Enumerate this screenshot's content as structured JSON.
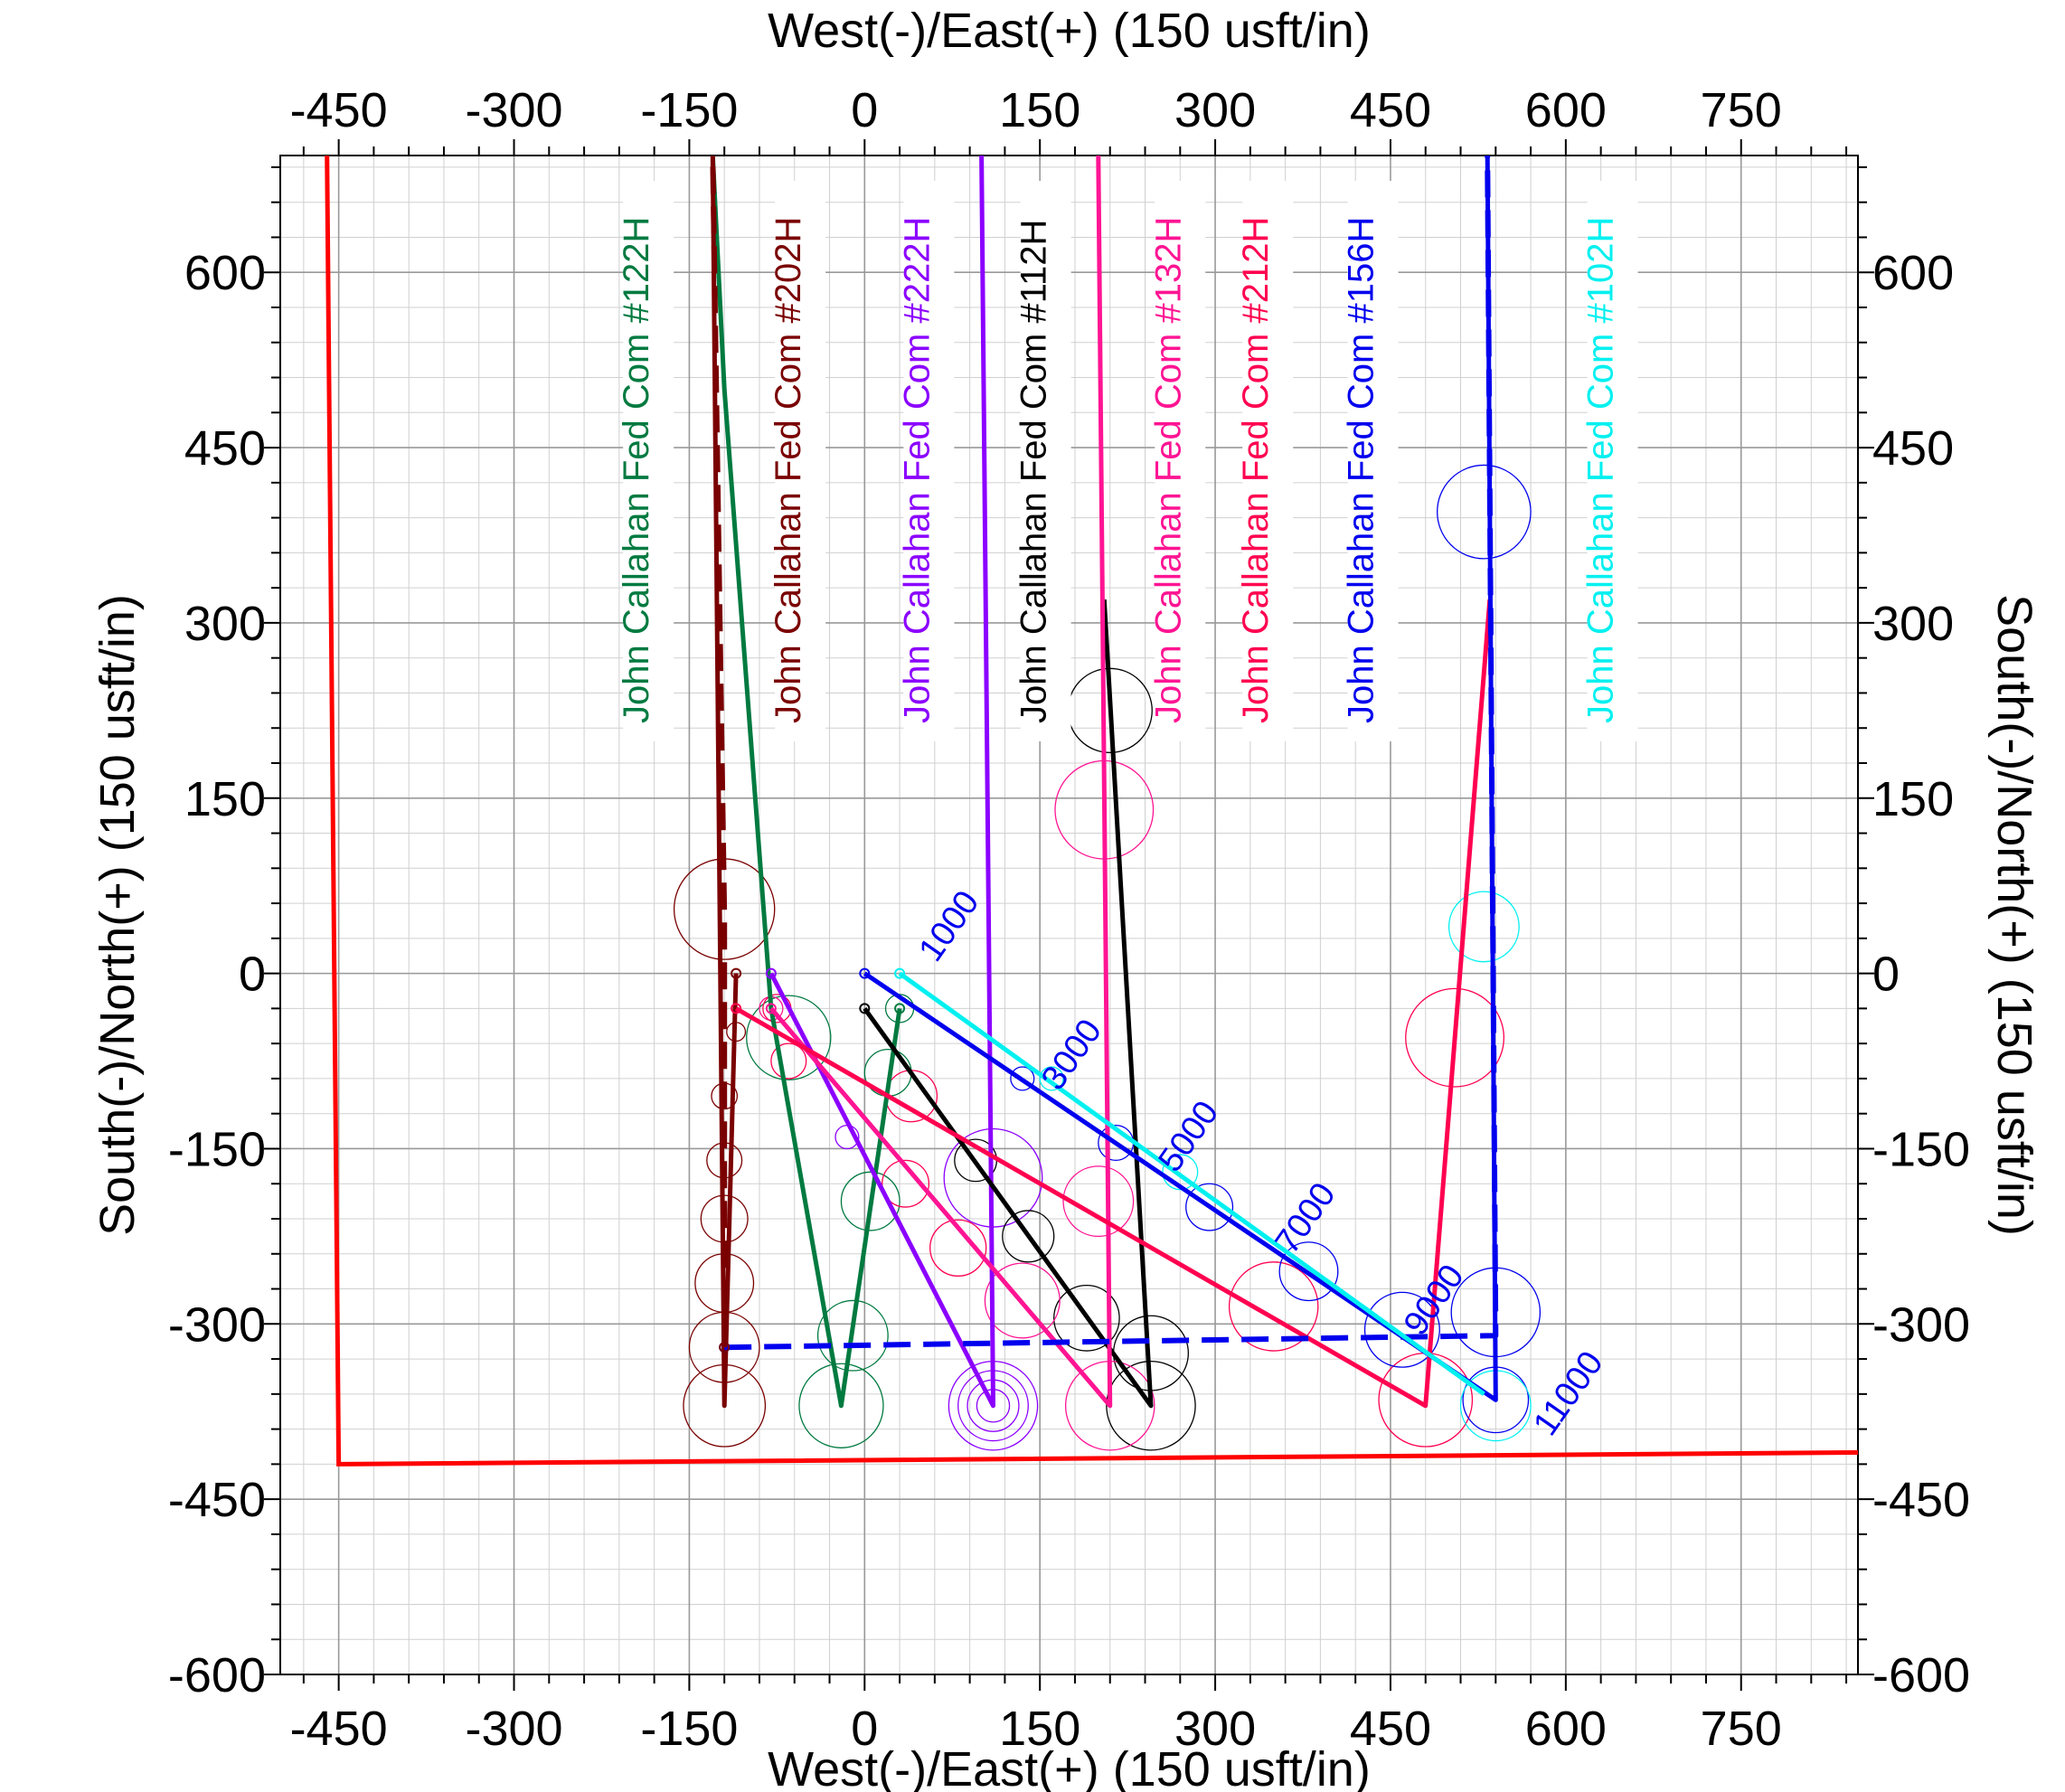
{
  "chart_data": {
    "type": "line",
    "title": "",
    "xlabel": "West(-)/East(+) (150 usft/in)",
    "ylabel": "South(-)/North(+) (150 usft/in)",
    "xlim": [
      -500,
      850
    ],
    "ylim": [
      -600,
      700
    ],
    "x_ticks": [
      -450,
      -300,
      -150,
      0,
      150,
      300,
      450,
      600,
      750
    ],
    "y_ticks": [
      600,
      450,
      300,
      150,
      0,
      -150,
      -300,
      -450,
      -600
    ],
    "grid": true,
    "colors": {
      "green": "#007a40",
      "maroon": "#7a0000",
      "purple": "#8b00ff",
      "black": "#000000",
      "pink": "#ff1493",
      "crimson": "#ff0050",
      "blue": "#0000ee",
      "cyan": "#00f0f0",
      "red": "#ff0000"
    },
    "lease_boundary": {
      "color": "#ff0000",
      "points": [
        [
          -460,
          700
        ],
        [
          -450,
          -420
        ],
        [
          850,
          -410
        ]
      ]
    },
    "well_labels": [
      {
        "text": "John Callahan Fed Com #122H",
        "color": "#007a40",
        "x": -185
      },
      {
        "text": "John Callahan Fed Com #202H",
        "color": "#7a0000",
        "x": -55
      },
      {
        "text": "John Callahan Fed Com #222H",
        "color": "#8b00ff",
        "x": 55
      },
      {
        "text": "John Callahan Fed Com #112H",
        "color": "#000000",
        "x": 155
      },
      {
        "text": "John Callahan Fed Com #132H",
        "color": "#ff1493",
        "x": 270
      },
      {
        "text": "John Callahan Fed Com #212H",
        "color": "#ff0050",
        "x": 345
      },
      {
        "text": "John Callahan Fed Com #156H",
        "color": "#0000ee",
        "x": 435
      },
      {
        "text": "John Callahan Fed Com #102H",
        "color": "#00f0f0",
        "x": 640
      }
    ],
    "series": [
      {
        "color": "#007a40",
        "dashed": false,
        "points": [
          [
            30,
            -30
          ],
          [
            -20,
            -370
          ],
          [
            -80,
            -30
          ],
          [
            -120,
            500
          ],
          [
            -130,
            700
          ]
        ]
      },
      {
        "color": "#7a0000",
        "dashed": false,
        "points": [
          [
            -110,
            0
          ],
          [
            -120,
            -370
          ],
          [
            -130,
            700
          ]
        ]
      },
      {
        "color": "#8b00ff",
        "dashed": false,
        "points": [
          [
            -80,
            0
          ],
          [
            110,
            -370
          ],
          [
            100,
            700
          ]
        ]
      },
      {
        "color": "#000000",
        "dashed": false,
        "points": [
          [
            0,
            -30
          ],
          [
            245,
            -370
          ],
          [
            205,
            320
          ]
        ]
      },
      {
        "color": "#ff1493",
        "dashed": false,
        "points": [
          [
            -80,
            -30
          ],
          [
            210,
            -370
          ],
          [
            200,
            700
          ]
        ]
      },
      {
        "color": "#ff0050",
        "dashed": false,
        "points": [
          [
            -110,
            -30
          ],
          [
            480,
            -370
          ],
          [
            535,
            320
          ]
        ]
      },
      {
        "color": "#0000ee",
        "dashed": false,
        "points": [
          [
            0,
            0
          ],
          [
            540,
            -365
          ],
          [
            533,
            700
          ]
        ]
      },
      {
        "color": "#0000ee",
        "dashed": true,
        "points": [
          [
            -120,
            -320
          ],
          [
            540,
            -310
          ],
          [
            533,
            700
          ]
        ]
      },
      {
        "color": "#00f0f0",
        "dashed": false,
        "points": [
          [
            30,
            0
          ],
          [
            530,
            -360
          ]
        ]
      },
      {
        "color": "#7a0000",
        "dashed": true,
        "points": [
          [
            -120,
            -320
          ],
          [
            -120,
            50
          ],
          [
            -130,
            700
          ]
        ]
      }
    ],
    "md_labels": [
      {
        "text": "1000",
        "x": 80,
        "y": 35
      },
      {
        "text": "3000",
        "x": 185,
        "y": -75
      },
      {
        "text": "5000",
        "x": 285,
        "y": -145
      },
      {
        "text": "7000",
        "x": 385,
        "y": -215
      },
      {
        "text": "9000",
        "x": 495,
        "y": -285
      },
      {
        "text": "11000",
        "x": 610,
        "y": -365
      }
    ],
    "circles": [
      {
        "x": -120,
        "y": 55,
        "r": 43,
        "color": "#7a0000"
      },
      {
        "x": -120,
        "y": -370,
        "r": 35,
        "color": "#7a0000"
      },
      {
        "x": -120,
        "y": -320,
        "r": 30,
        "color": "#7a0000"
      },
      {
        "x": -120,
        "y": -265,
        "r": 25,
        "color": "#7a0000"
      },
      {
        "x": -120,
        "y": -210,
        "r": 20,
        "color": "#7a0000"
      },
      {
        "x": -120,
        "y": -160,
        "r": 15,
        "color": "#7a0000"
      },
      {
        "x": -120,
        "y": -105,
        "r": 11,
        "color": "#7a0000"
      },
      {
        "x": -110,
        "y": -50,
        "r": 8,
        "color": "#7a0000"
      },
      {
        "x": -65,
        "y": -55,
        "r": 36,
        "color": "#007a40"
      },
      {
        "x": 20,
        "y": -85,
        "r": 20,
        "color": "#007a40"
      },
      {
        "x": 5,
        "y": -195,
        "r": 25,
        "color": "#007a40"
      },
      {
        "x": -10,
        "y": -310,
        "r": 30,
        "color": "#007a40"
      },
      {
        "x": -20,
        "y": -370,
        "r": 36,
        "color": "#007a40"
      },
      {
        "x": 30,
        "y": -30,
        "r": 12,
        "color": "#007a40"
      },
      {
        "x": 110,
        "y": -175,
        "r": 42,
        "color": "#8b00ff"
      },
      {
        "x": 110,
        "y": -370,
        "r": 38,
        "color": "#8b00ff"
      },
      {
        "x": 110,
        "y": -370,
        "r": 30,
        "color": "#8b00ff"
      },
      {
        "x": 110,
        "y": -370,
        "r": 22,
        "color": "#8b00ff"
      },
      {
        "x": 110,
        "y": -370,
        "r": 14,
        "color": "#8b00ff"
      },
      {
        "x": -15,
        "y": -140,
        "r": 10,
        "color": "#8b00ff"
      },
      {
        "x": 210,
        "y": 225,
        "r": 36,
        "color": "#000000"
      },
      {
        "x": 95,
        "y": -160,
        "r": 18,
        "color": "#000000"
      },
      {
        "x": 140,
        "y": -225,
        "r": 22,
        "color": "#000000"
      },
      {
        "x": 190,
        "y": -295,
        "r": 28,
        "color": "#000000"
      },
      {
        "x": 245,
        "y": -370,
        "r": 38,
        "color": "#000000"
      },
      {
        "x": 245,
        "y": -325,
        "r": 32,
        "color": "#000000"
      },
      {
        "x": 205,
        "y": 140,
        "r": 42,
        "color": "#ff1493"
      },
      {
        "x": 200,
        "y": -195,
        "r": 30,
        "color": "#ff1493"
      },
      {
        "x": 135,
        "y": -280,
        "r": 32,
        "color": "#ff1493"
      },
      {
        "x": 210,
        "y": -370,
        "r": 38,
        "color": "#ff1493"
      },
      {
        "x": -80,
        "y": -30,
        "r": 10,
        "color": "#ff1493"
      },
      {
        "x": 40,
        "y": -105,
        "r": 22,
        "color": "#ff0050"
      },
      {
        "x": 35,
        "y": -180,
        "r": 20,
        "color": "#ff0050"
      },
      {
        "x": 80,
        "y": -235,
        "r": 24,
        "color": "#ff0050"
      },
      {
        "x": 350,
        "y": -285,
        "r": 38,
        "color": "#ff0050"
      },
      {
        "x": 480,
        "y": -365,
        "r": 40,
        "color": "#ff0050"
      },
      {
        "x": 505,
        "y": -55,
        "r": 42,
        "color": "#ff0050"
      },
      {
        "x": -75,
        "y": -30,
        "r": 12,
        "color": "#ff0050"
      },
      {
        "x": -65,
        "y": -75,
        "r": 15,
        "color": "#ff0050"
      },
      {
        "x": 530,
        "y": 395,
        "r": 40,
        "color": "#0000ee"
      },
      {
        "x": 135,
        "y": -90,
        "r": 10,
        "color": "#0000ee"
      },
      {
        "x": 215,
        "y": -145,
        "r": 15,
        "color": "#0000ee"
      },
      {
        "x": 295,
        "y": -200,
        "r": 20,
        "color": "#0000ee"
      },
      {
        "x": 380,
        "y": -255,
        "r": 25,
        "color": "#0000ee"
      },
      {
        "x": 460,
        "y": -305,
        "r": 32,
        "color": "#0000ee"
      },
      {
        "x": 540,
        "y": -365,
        "r": 28,
        "color": "#0000ee"
      },
      {
        "x": 540,
        "y": -290,
        "r": 38,
        "color": "#0000ee"
      },
      {
        "x": 530,
        "y": 40,
        "r": 30,
        "color": "#00f0f0"
      },
      {
        "x": 540,
        "y": -370,
        "r": 30,
        "color": "#00f0f0"
      },
      {
        "x": 160,
        "y": -90,
        "r": 10,
        "color": "#00f0f0"
      },
      {
        "x": 270,
        "y": -170,
        "r": 15,
        "color": "#00f0f0"
      }
    ]
  }
}
